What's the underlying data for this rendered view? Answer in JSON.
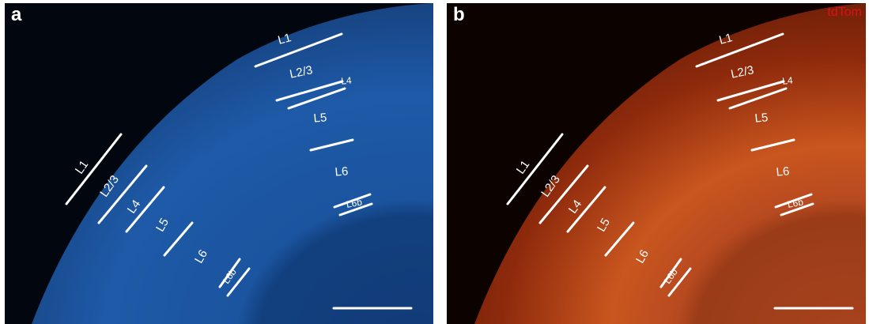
{
  "panels": [
    {
      "letter": "a",
      "labels": {
        "upper": [
          "L1",
          "L2/3",
          "L4",
          "L5",
          "L6",
          "L6b"
        ],
        "diagonal": [
          "L1",
          "L2/3",
          "L4",
          "L5",
          "L6",
          "L6b"
        ]
      }
    },
    {
      "letter": "b",
      "channel": "tdTom",
      "labels": {
        "upper": [
          "L1",
          "L2/3",
          "L4",
          "L5",
          "L6",
          "L6b"
        ],
        "diagonal": [
          "L1",
          "L2/3",
          "L4",
          "L5",
          "L6",
          "L6b"
        ]
      }
    }
  ]
}
